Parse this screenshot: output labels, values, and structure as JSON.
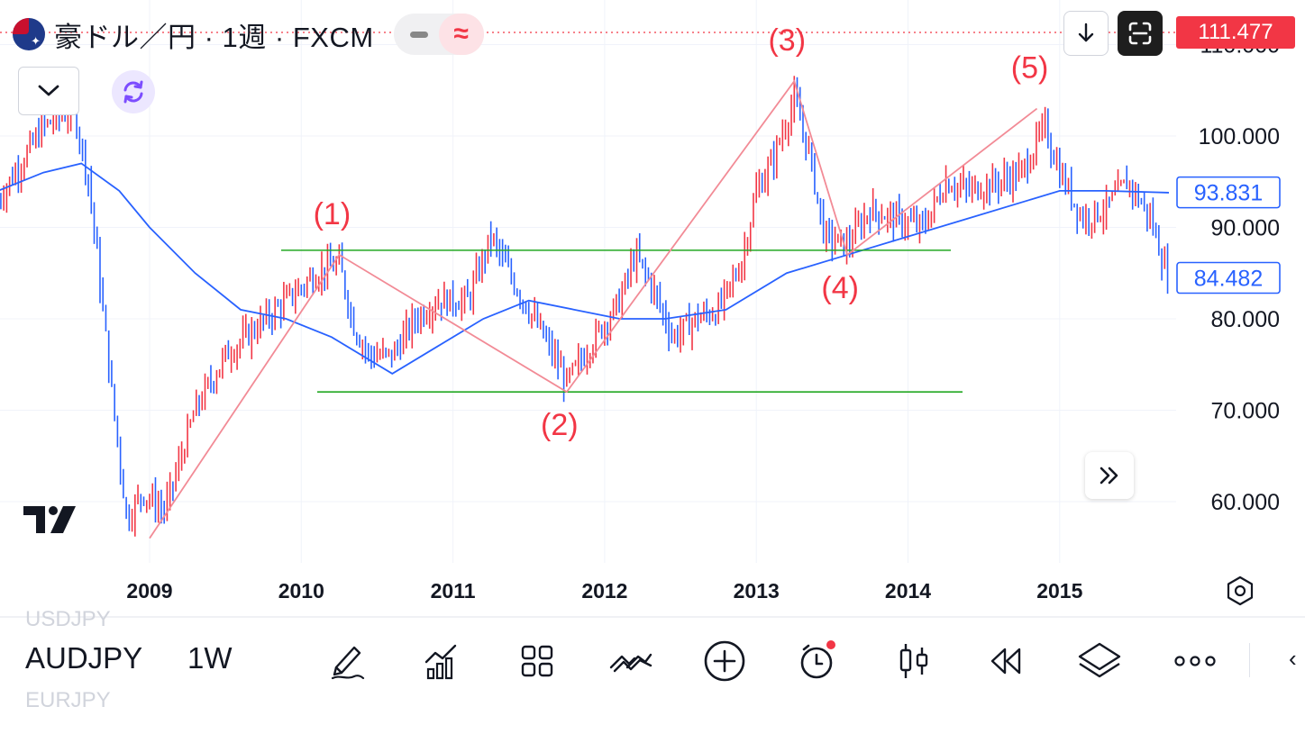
{
  "header": {
    "title": "豪ドル／円 · 1週 · FXCM",
    "approx_symbol": "≈",
    "last_price": "111.477"
  },
  "price_axis": {
    "ticks": [
      "110.000",
      "100.000",
      "90.000",
      "80.000",
      "70.000",
      "60.000"
    ],
    "ma_label": "93.831",
    "current_label": "84.482"
  },
  "time_axis": {
    "ticks": [
      "2009",
      "2010",
      "2011",
      "2012",
      "2013",
      "2014",
      "2015"
    ]
  },
  "wave_labels": [
    "(1)",
    "(2)",
    "(3)",
    "(4)",
    "(5)"
  ],
  "bottom_bar": {
    "symbol": "AUDJPY",
    "interval": "1W",
    "ghost_prev": "USDJPY",
    "ghost_next": "EURJPY",
    "tools": [
      "draw-icon",
      "indicators-icon",
      "layout-icon",
      "compare-icon",
      "add-icon",
      "alert-icon",
      "chart-type-icon",
      "replay-icon",
      "layers-icon",
      "more-icon"
    ]
  },
  "colors": {
    "up": "#f23645",
    "down": "#2962ff",
    "ma": "#2962ff",
    "wave": "#f28b96",
    "levels": "#22a822",
    "accent": "#f23645"
  },
  "chart_data": {
    "type": "line",
    "title": "",
    "xlabel": "",
    "ylabel": "",
    "x": [
      "2009",
      "2010",
      "2011",
      "2012",
      "2013",
      "2014",
      "2015"
    ],
    "ylim": [
      52,
      112
    ],
    "series": [
      {
        "values": [
          [
            2008.0,
            93
          ],
          [
            2008.3,
            101
          ],
          [
            2008.5,
            103
          ],
          [
            2008.6,
            95
          ],
          [
            2008.75,
            72
          ],
          [
            2008.85,
            58
          ],
          [
            2008.95,
            61
          ],
          [
            2009.1,
            59
          ],
          [
            2009.3,
            70
          ],
          [
            2009.5,
            76
          ],
          [
            2009.7,
            79
          ],
          [
            2009.9,
            82
          ],
          [
            2010.1,
            85
          ],
          [
            2010.25,
            86
          ],
          [
            2010.35,
            79
          ],
          [
            2010.45,
            76
          ],
          [
            2010.6,
            76
          ],
          [
            2010.75,
            80
          ],
          [
            2010.9,
            82
          ],
          [
            2011.1,
            82
          ],
          [
            2011.25,
            89
          ],
          [
            2011.4,
            84
          ],
          [
            2011.6,
            78
          ],
          [
            2011.75,
            73
          ],
          [
            2011.9,
            77
          ],
          [
            2012.1,
            82
          ],
          [
            2012.2,
            87
          ],
          [
            2012.3,
            84
          ],
          [
            2012.45,
            78
          ],
          [
            2012.6,
            80
          ],
          [
            2012.75,
            81
          ],
          [
            2012.9,
            86
          ],
          [
            2013.0,
            94
          ],
          [
            2013.1,
            97
          ],
          [
            2013.25,
            104
          ],
          [
            2013.35,
            98
          ],
          [
            2013.45,
            89
          ],
          [
            2013.6,
            88
          ],
          [
            2013.75,
            92
          ],
          [
            2013.9,
            91
          ],
          [
            2014.1,
            90
          ],
          [
            2014.25,
            95
          ],
          [
            2014.4,
            94
          ],
          [
            2014.6,
            95
          ],
          [
            2014.75,
            96
          ],
          [
            2014.9,
            101
          ],
          [
            2015.0,
            96
          ],
          [
            2015.15,
            91
          ],
          [
            2015.3,
            92
          ],
          [
            2015.45,
            95
          ],
          [
            2015.6,
            91
          ],
          [
            2015.72,
            84
          ]
        ]
      },
      {
        "values": [
          [
            2008.0,
            94
          ],
          [
            2008.3,
            96
          ],
          [
            2008.55,
            97
          ],
          [
            2008.8,
            94
          ],
          [
            2009.0,
            90
          ],
          [
            2009.3,
            85
          ],
          [
            2009.6,
            81
          ],
          [
            2009.9,
            80
          ],
          [
            2010.2,
            78
          ],
          [
            2010.6,
            74
          ],
          [
            2010.9,
            77
          ],
          [
            2011.2,
            80
          ],
          [
            2011.5,
            82
          ],
          [
            2011.8,
            81
          ],
          [
            2012.1,
            80
          ],
          [
            2012.4,
            80
          ],
          [
            2012.8,
            81
          ],
          [
            2013.2,
            85
          ],
          [
            2013.6,
            87
          ],
          [
            2014.0,
            89
          ],
          [
            2014.4,
            91
          ],
          [
            2014.8,
            93
          ],
          [
            2015.0,
            94
          ],
          [
            2015.3,
            94
          ],
          [
            2015.72,
            93.8
          ]
        ]
      }
    ],
    "wave_points": [
      [
        2009.0,
        56
      ],
      [
        2010.25,
        87
      ],
      [
        2011.75,
        72
      ],
      [
        2013.25,
        106
      ],
      [
        2013.6,
        87
      ],
      [
        2014.85,
        103
      ]
    ],
    "support_levels": [
      87.5,
      72
    ]
  }
}
